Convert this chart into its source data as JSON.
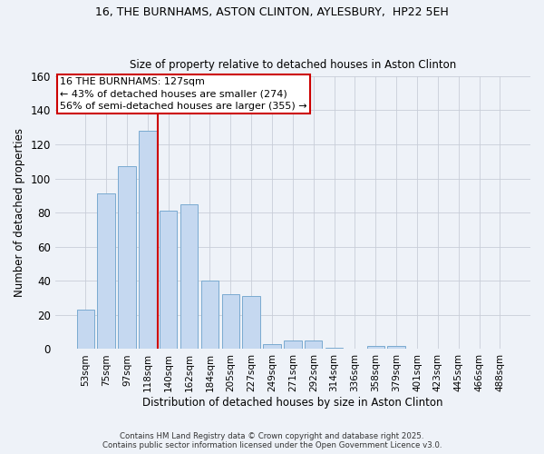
{
  "title1": "16, THE BURNHAMS, ASTON CLINTON, AYLESBURY,  HP22 5EH",
  "title2": "Size of property relative to detached houses in Aston Clinton",
  "xlabel": "Distribution of detached houses by size in Aston Clinton",
  "ylabel": "Number of detached properties",
  "footnote1": "Contains HM Land Registry data © Crown copyright and database right 2025.",
  "footnote2": "Contains public sector information licensed under the Open Government Licence v3.0.",
  "bar_labels": [
    "53sqm",
    "75sqm",
    "97sqm",
    "118sqm",
    "140sqm",
    "162sqm",
    "184sqm",
    "205sqm",
    "227sqm",
    "249sqm",
    "271sqm",
    "292sqm",
    "314sqm",
    "336sqm",
    "358sqm",
    "379sqm",
    "401sqm",
    "423sqm",
    "445sqm",
    "466sqm",
    "488sqm"
  ],
  "bar_values": [
    23,
    91,
    107,
    128,
    81,
    85,
    40,
    32,
    31,
    3,
    5,
    5,
    1,
    0,
    2,
    2,
    0,
    0,
    0,
    0,
    0
  ],
  "bar_color": "#c5d8f0",
  "bar_edge_color": "#7aaad0",
  "vline_x": 3.5,
  "annotation_text1": "16 THE BURNHAMS: 127sqm",
  "annotation_text2": "← 43% of detached houses are smaller (274)",
  "annotation_text3": "56% of semi-detached houses are larger (355) →",
  "annotation_box_color": "#ffffff",
  "annotation_box_edge": "#cc0000",
  "vline_color": "#cc0000",
  "grid_color": "#c8cdd8",
  "background_color": "#eef2f8",
  "ylim": [
    0,
    160
  ],
  "yticks": [
    0,
    20,
    40,
    60,
    80,
    100,
    120,
    140,
    160
  ]
}
